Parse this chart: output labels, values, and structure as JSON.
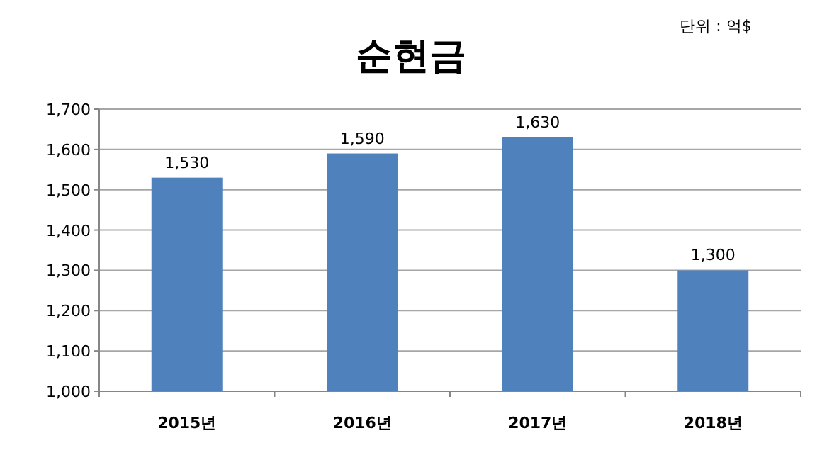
{
  "chart_data": {
    "type": "bar",
    "title": "순현금",
    "annotations": [
      "단위 : 억$"
    ],
    "categories": [
      "2015년",
      "2016년",
      "2017년",
      "2018년"
    ],
    "values": [
      1530,
      1590,
      1630,
      1300
    ],
    "color": "#4f81bd",
    "ylim": [
      1000,
      1700
    ],
    "yticks": [
      {
        "value": 1000,
        "label": "1,000"
      },
      {
        "value": 1100,
        "label": "1,100"
      },
      {
        "value": 1200,
        "label": "1,200"
      },
      {
        "value": 1300,
        "label": "1,300"
      },
      {
        "value": 1400,
        "label": "1,400"
      },
      {
        "value": 1500,
        "label": "1,500"
      },
      {
        "value": 1600,
        "label": "1,600"
      },
      {
        "value": 1700,
        "label": "1,700"
      }
    ],
    "grid": "y",
    "data_labels": true,
    "value_labels": [
      "1,530",
      "1,590",
      "1,630",
      "1,300"
    ]
  }
}
